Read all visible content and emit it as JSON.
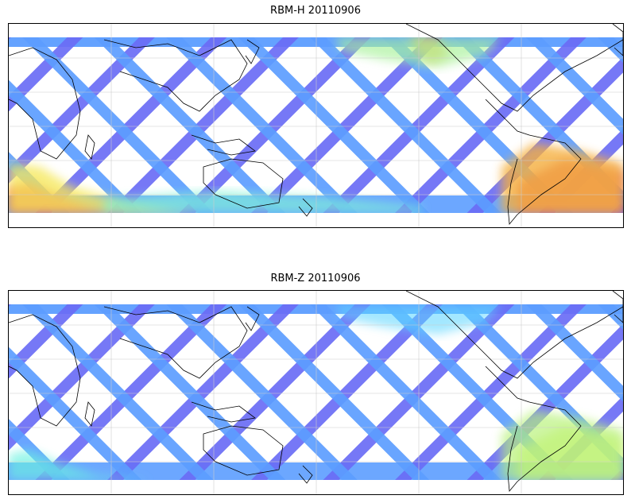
{
  "panels": [
    {
      "title": "RBM-H 20110906",
      "track_color": "#6a6cf5",
      "track_color_alt": "#5c9dff",
      "hotspots": [
        {
          "region": "southern-ocean-west",
          "level": 0.95,
          "color": "#f25a4a"
        },
        {
          "region": "southern-ocean-west-edge",
          "level": 0.7,
          "color": "#f5e85a"
        },
        {
          "region": "southern-ocean-mid",
          "level": 0.55,
          "color": "#7ff2d6"
        },
        {
          "region": "north-pacific-east",
          "level": 0.7,
          "color": "#f5c04a"
        },
        {
          "region": "north-pacific-mid",
          "level": 0.5,
          "color": "#a7f29a"
        },
        {
          "region": "south-atlantic",
          "level": 0.95,
          "color": "#e06060"
        },
        {
          "region": "south-america-east",
          "level": 0.75,
          "color": "#f5b040"
        }
      ]
    },
    {
      "title": "RBM-Z 20110906",
      "track_color": "#6a6cf5",
      "track_color_alt": "#5c9dff",
      "hotspots": [
        {
          "region": "southern-ocean-west",
          "level": 0.5,
          "color": "#6af2e0"
        },
        {
          "region": "south-atlantic",
          "level": 0.6,
          "color": "#d6f570"
        },
        {
          "region": "south-america-east",
          "level": 0.55,
          "color": "#b8f27a"
        },
        {
          "region": "north-pacific-mid",
          "level": 0.35,
          "color": "#5cd6ff"
        }
      ]
    }
  ],
  "colors": {
    "coastline": "#000000",
    "grid": "#cccccc",
    "frame": "#000000",
    "background": "#ffffff"
  }
}
